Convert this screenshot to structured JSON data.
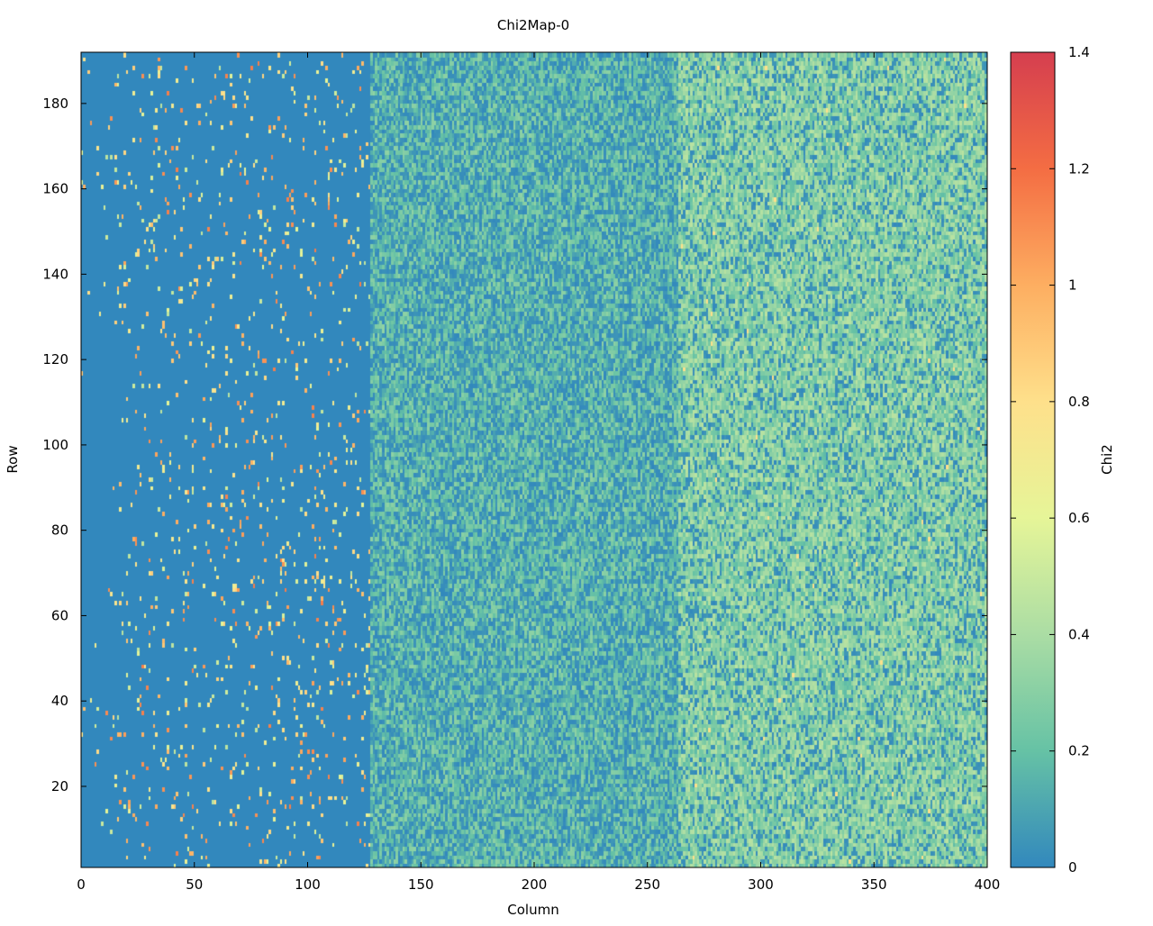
{
  "chart_data": {
    "type": "heatmap",
    "title": "Chi2Map-0",
    "xlabel": "Column",
    "ylabel": "Row",
    "colorbar_label": "Chi2",
    "xlim": [
      0,
      400
    ],
    "ylim": [
      1,
      192
    ],
    "zlim": [
      0,
      1.4
    ],
    "x_ticks": [
      0,
      50,
      100,
      150,
      200,
      250,
      300,
      350,
      400
    ],
    "y_ticks": [
      20,
      40,
      60,
      80,
      100,
      120,
      140,
      160,
      180
    ],
    "colorbar_ticks": [
      0,
      0.2,
      0.4,
      0.6,
      0.8,
      1,
      1.2,
      1.4
    ],
    "colorscale": [
      "#3288bd",
      "#66c2a5",
      "#abdda4",
      "#e6f598",
      "#fee08b",
      "#fdae61",
      "#f46d43",
      "#d53e4f"
    ],
    "grid": false,
    "regions": [
      {
        "columns": [
          0,
          128
        ],
        "description_value": "mostly 0 with sparse high values up to ~1.1"
      },
      {
        "columns": [
          128,
          264
        ],
        "mean_value": 0.15
      },
      {
        "columns": [
          264,
          400
        ],
        "mean_value": 0.3
      }
    ]
  }
}
